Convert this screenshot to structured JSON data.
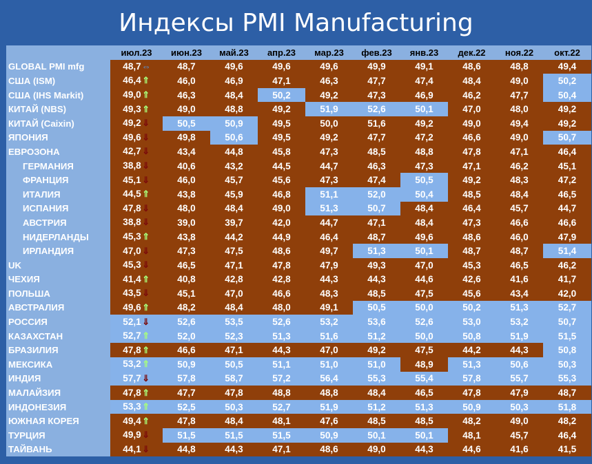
{
  "title": "Индексы PMI Manufacturing",
  "arrow_glyphs": {
    "up": "⇑",
    "down": "⇓",
    "eq": "⇔"
  },
  "colors": {
    "panel": "#2d5fa6",
    "brown_cell": "#8f3f0a",
    "blue_cell": "#86b2ea",
    "header": "#8ab0e0",
    "up_arrow": "#a8ff7a",
    "down_arrow": "#7a0a0a"
  },
  "chart_data": {
    "type": "table",
    "title": "Индексы PMI Manufacturing",
    "columns": [
      "июл.23",
      "июн.23",
      "май.23",
      "апр.23",
      "мар.23",
      "фев.23",
      "янв.23",
      "дек.22",
      "ноя.22",
      "окт.22"
    ],
    "rows": [
      {
        "name": "GLOBAL PMI mfg",
        "sub": false,
        "arrow": "eq",
        "values": [
          "48,7",
          "48,7",
          "49,6",
          "49,6",
          "49,6",
          "49,9",
          "49,1",
          "48,6",
          "48,8",
          "49,4"
        ],
        "colors": [
          "b",
          "b",
          "b",
          "b",
          "b",
          "b",
          "b",
          "b",
          "b",
          "b"
        ]
      },
      {
        "name": "США (ISM)",
        "sub": false,
        "arrow": "up",
        "values": [
          "46,4",
          "46,0",
          "46,9",
          "47,1",
          "46,3",
          "47,7",
          "47,4",
          "48,4",
          "49,0",
          "50,2"
        ],
        "colors": [
          "b",
          "b",
          "b",
          "b",
          "b",
          "b",
          "b",
          "b",
          "b",
          "l"
        ]
      },
      {
        "name": "США (IHS Markit)",
        "sub": false,
        "arrow": "up",
        "values": [
          "49,0",
          "46,3",
          "48,4",
          "50,2",
          "49,2",
          "47,3",
          "46,9",
          "46,2",
          "47,7",
          "50,4"
        ],
        "colors": [
          "b",
          "b",
          "b",
          "l",
          "b",
          "b",
          "b",
          "b",
          "b",
          "l"
        ]
      },
      {
        "name": "КИТАЙ (NBS)",
        "sub": false,
        "arrow": "up",
        "values": [
          "49,3",
          "49,0",
          "48,8",
          "49,2",
          "51,9",
          "52,6",
          "50,1",
          "47,0",
          "48,0",
          "49,2"
        ],
        "colors": [
          "b",
          "b",
          "b",
          "b",
          "l",
          "l",
          "l",
          "b",
          "b",
          "b"
        ]
      },
      {
        "name": "КИТАЙ (Caixin)",
        "sub": false,
        "arrow": "down",
        "values": [
          "49,2",
          "50,5",
          "50,9",
          "49,5",
          "50,0",
          "51,6",
          "49,2",
          "49,0",
          "49,4",
          "49,2"
        ],
        "colors": [
          "b",
          "l",
          "l",
          "b",
          "b",
          "b",
          "b",
          "b",
          "b",
          "b"
        ]
      },
      {
        "name": "ЯПОНИЯ",
        "sub": false,
        "arrow": "down",
        "values": [
          "49,6",
          "49,8",
          "50,6",
          "49,5",
          "49,2",
          "47,7",
          "47,2",
          "46,6",
          "49,0",
          "50,7"
        ],
        "colors": [
          "b",
          "b",
          "l",
          "b",
          "b",
          "b",
          "b",
          "b",
          "b",
          "l"
        ]
      },
      {
        "name": "ЕВРОЗОНА",
        "sub": false,
        "arrow": "down",
        "values": [
          "42,7",
          "43,4",
          "44,8",
          "45,8",
          "47,3",
          "48,5",
          "48,8",
          "47,8",
          "47,1",
          "46,4"
        ],
        "colors": [
          "b",
          "b",
          "b",
          "b",
          "b",
          "b",
          "b",
          "b",
          "b",
          "b"
        ]
      },
      {
        "name": "ГЕРМАНИЯ",
        "sub": true,
        "arrow": "down",
        "values": [
          "38,8",
          "40,6",
          "43,2",
          "44,5",
          "44,7",
          "46,3",
          "47,3",
          "47,1",
          "46,2",
          "45,1"
        ],
        "colors": [
          "b",
          "b",
          "b",
          "b",
          "b",
          "b",
          "b",
          "b",
          "b",
          "b"
        ]
      },
      {
        "name": "ФРАНЦИЯ",
        "sub": true,
        "arrow": "down",
        "values": [
          "45,1",
          "46,0",
          "45,7",
          "45,6",
          "47,3",
          "47,4",
          "50,5",
          "49,2",
          "48,3",
          "47,2"
        ],
        "colors": [
          "b",
          "b",
          "b",
          "b",
          "b",
          "b",
          "l",
          "b",
          "b",
          "b"
        ]
      },
      {
        "name": "ИТАЛИЯ",
        "sub": true,
        "arrow": "up",
        "values": [
          "44,5",
          "43,8",
          "45,9",
          "46,8",
          "51,1",
          "52,0",
          "50,4",
          "48,5",
          "48,4",
          "46,5"
        ],
        "colors": [
          "b",
          "b",
          "b",
          "b",
          "l",
          "l",
          "l",
          "b",
          "b",
          "b"
        ]
      },
      {
        "name": "ИСПАНИЯ",
        "sub": true,
        "arrow": "down",
        "values": [
          "47,8",
          "48,0",
          "48,4",
          "49,0",
          "51,3",
          "50,7",
          "48,4",
          "46,4",
          "45,7",
          "44,7"
        ],
        "colors": [
          "b",
          "b",
          "b",
          "b",
          "l",
          "l",
          "b",
          "b",
          "b",
          "b"
        ]
      },
      {
        "name": "АВСТРИЯ",
        "sub": true,
        "arrow": "down",
        "values": [
          "38,8",
          "39,0",
          "39,7",
          "42,0",
          "44,7",
          "47,1",
          "48,4",
          "47,3",
          "46,6",
          "46,6"
        ],
        "colors": [
          "b",
          "b",
          "b",
          "b",
          "b",
          "b",
          "b",
          "b",
          "b",
          "b"
        ]
      },
      {
        "name": "НИДЕРЛАНДЫ",
        "sub": true,
        "arrow": "up",
        "values": [
          "45,3",
          "43,8",
          "44,2",
          "44,9",
          "46,4",
          "48,7",
          "49,6",
          "48,6",
          "46,0",
          "47,9"
        ],
        "colors": [
          "b",
          "b",
          "b",
          "b",
          "b",
          "b",
          "b",
          "b",
          "b",
          "b"
        ]
      },
      {
        "name": "ИРЛАНДИЯ",
        "sub": true,
        "arrow": "down",
        "values": [
          "47,0",
          "47,3",
          "47,5",
          "48,6",
          "49,7",
          "51,3",
          "50,1",
          "48,7",
          "48,7",
          "51,4"
        ],
        "colors": [
          "b",
          "b",
          "b",
          "b",
          "b",
          "l",
          "l",
          "b",
          "b",
          "l"
        ]
      },
      {
        "name": "UK",
        "sub": false,
        "arrow": "down",
        "values": [
          "45,3",
          "46,5",
          "47,1",
          "47,8",
          "47,9",
          "49,3",
          "47,0",
          "45,3",
          "46,5",
          "46,2"
        ],
        "colors": [
          "b",
          "b",
          "b",
          "b",
          "b",
          "b",
          "b",
          "b",
          "b",
          "b"
        ]
      },
      {
        "name": "ЧЕХИЯ",
        "sub": false,
        "arrow": "up",
        "values": [
          "41,4",
          "40,8",
          "42,8",
          "42,8",
          "44,3",
          "44,3",
          "44,6",
          "42,6",
          "41,6",
          "41,7"
        ],
        "colors": [
          "b",
          "b",
          "b",
          "b",
          "b",
          "b",
          "b",
          "b",
          "b",
          "b"
        ]
      },
      {
        "name": "ПОЛЬША",
        "sub": false,
        "arrow": "down",
        "values": [
          "43,5",
          "45,1",
          "47,0",
          "46,6",
          "48,3",
          "48,5",
          "47,5",
          "45,6",
          "43,4",
          "42,0"
        ],
        "colors": [
          "b",
          "b",
          "b",
          "b",
          "b",
          "b",
          "b",
          "b",
          "b",
          "b"
        ]
      },
      {
        "name": "АВСТРАЛИЯ",
        "sub": false,
        "arrow": "up",
        "values": [
          "49,6",
          "48,2",
          "48,4",
          "48,0",
          "49,1",
          "50,5",
          "50,0",
          "50,2",
          "51,3",
          "52,7"
        ],
        "colors": [
          "b",
          "b",
          "b",
          "b",
          "b",
          "l",
          "l",
          "l",
          "l",
          "l"
        ]
      },
      {
        "name": "РОССИЯ",
        "sub": false,
        "arrow": "down",
        "values": [
          "52,1",
          "52,6",
          "53,5",
          "52,6",
          "53,2",
          "53,6",
          "52,6",
          "53,0",
          "53,2",
          "50,7"
        ],
        "colors": [
          "l",
          "l",
          "l",
          "l",
          "l",
          "l",
          "l",
          "l",
          "l",
          "l"
        ]
      },
      {
        "name": "КАЗАХСТАН",
        "sub": false,
        "arrow": "up",
        "values": [
          "52,7",
          "52,0",
          "52,3",
          "51,3",
          "51,6",
          "51,2",
          "50,0",
          "50,8",
          "51,9",
          "51,5"
        ],
        "colors": [
          "l",
          "l",
          "l",
          "l",
          "l",
          "l",
          "l",
          "l",
          "l",
          "l"
        ]
      },
      {
        "name": "БРАЗИЛИЯ",
        "sub": false,
        "arrow": "up",
        "values": [
          "47,8",
          "46,6",
          "47,1",
          "44,3",
          "47,0",
          "49,2",
          "47,5",
          "44,2",
          "44,3",
          "50,8"
        ],
        "colors": [
          "b",
          "b",
          "b",
          "b",
          "b",
          "b",
          "b",
          "b",
          "b",
          "l"
        ]
      },
      {
        "name": "МЕКСИКА",
        "sub": false,
        "arrow": "up",
        "values": [
          "53,2",
          "50,9",
          "50,5",
          "51,1",
          "51,0",
          "51,0",
          "48,9",
          "51,3",
          "50,6",
          "50,3"
        ],
        "colors": [
          "l",
          "l",
          "l",
          "l",
          "l",
          "l",
          "b",
          "l",
          "l",
          "l"
        ]
      },
      {
        "name": "ИНДИЯ",
        "sub": false,
        "arrow": "down",
        "values": [
          "57,7",
          "57,8",
          "58,7",
          "57,2",
          "56,4",
          "55,3",
          "55,4",
          "57,8",
          "55,7",
          "55,3"
        ],
        "colors": [
          "l",
          "l",
          "l",
          "l",
          "l",
          "l",
          "l",
          "l",
          "l",
          "l"
        ]
      },
      {
        "name": "МАЛАЙЗИЯ",
        "sub": false,
        "arrow": "up",
        "values": [
          "47,8",
          "47,7",
          "47,8",
          "48,8",
          "48,8",
          "48,4",
          "46,5",
          "47,8",
          "47,9",
          "48,7"
        ],
        "colors": [
          "b",
          "b",
          "b",
          "b",
          "b",
          "b",
          "b",
          "b",
          "b",
          "b"
        ]
      },
      {
        "name": "ИНДОНЕЗИЯ",
        "sub": false,
        "arrow": "up",
        "values": [
          "53,3",
          "52,5",
          "50,3",
          "52,7",
          "51,9",
          "51,2",
          "51,3",
          "50,9",
          "50,3",
          "51,8"
        ],
        "colors": [
          "l",
          "l",
          "l",
          "l",
          "l",
          "l",
          "l",
          "l",
          "l",
          "l"
        ]
      },
      {
        "name": "ЮЖНАЯ КОРЕЯ",
        "sub": false,
        "arrow": "up",
        "values": [
          "49,4",
          "47,8",
          "48,4",
          "48,1",
          "47,6",
          "48,5",
          "48,5",
          "48,2",
          "49,0",
          "48,2"
        ],
        "colors": [
          "b",
          "b",
          "b",
          "b",
          "b",
          "b",
          "b",
          "b",
          "b",
          "b"
        ]
      },
      {
        "name": "ТУРЦИЯ",
        "sub": false,
        "arrow": "down",
        "values": [
          "49,9",
          "51,5",
          "51,5",
          "51,5",
          "50,9",
          "50,1",
          "50,1",
          "48,1",
          "45,7",
          "46,4"
        ],
        "colors": [
          "b",
          "l",
          "l",
          "l",
          "l",
          "l",
          "l",
          "b",
          "b",
          "b"
        ]
      },
      {
        "name": "ТАЙВАНЬ",
        "sub": false,
        "arrow": "down",
        "values": [
          "44,1",
          "44,8",
          "44,3",
          "47,1",
          "48,6",
          "49,0",
          "44,3",
          "44,6",
          "41,6",
          "41,5"
        ],
        "colors": [
          "b",
          "b",
          "b",
          "b",
          "b",
          "b",
          "b",
          "b",
          "b",
          "b"
        ]
      }
    ]
  }
}
